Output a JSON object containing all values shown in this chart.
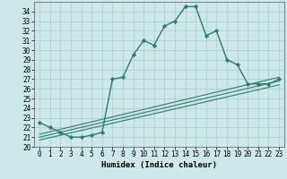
{
  "title": "",
  "xlabel": "Humidex (Indice chaleur)",
  "ylabel": "",
  "xlim": [
    -0.5,
    23.5
  ],
  "ylim": [
    20,
    35
  ],
  "yticks": [
    20,
    21,
    22,
    23,
    24,
    25,
    26,
    27,
    28,
    29,
    30,
    31,
    32,
    33,
    34
  ],
  "xticks": [
    0,
    1,
    2,
    3,
    4,
    5,
    6,
    7,
    8,
    9,
    10,
    11,
    12,
    13,
    14,
    15,
    16,
    17,
    18,
    19,
    20,
    21,
    22,
    23
  ],
  "main_x": [
    0,
    1,
    2,
    3,
    4,
    5,
    6,
    7,
    8,
    9,
    10,
    11,
    12,
    13,
    14,
    15,
    16,
    17,
    18,
    19,
    20,
    21,
    22,
    23
  ],
  "main_y": [
    22.5,
    22.0,
    21.5,
    21.0,
    21.0,
    21.2,
    21.5,
    27.0,
    27.2,
    29.5,
    31.0,
    30.5,
    32.5,
    33.0,
    34.5,
    34.5,
    31.5,
    32.0,
    29.0,
    28.5,
    26.5,
    26.5,
    26.5,
    27.0
  ],
  "line_color": "#2e7d6e",
  "bg_color": "#cce8e8",
  "grid_color": "#aacccc",
  "marker": "D",
  "marker_size": 2.2,
  "line_width": 1.0,
  "reg_lines": [
    [
      0,
      21.3,
      23,
      27.2
    ],
    [
      0,
      21.0,
      23,
      26.8
    ],
    [
      0,
      20.7,
      23,
      26.4
    ]
  ],
  "xlabel_fontsize": 6.5,
  "tick_fontsize": 5.5
}
